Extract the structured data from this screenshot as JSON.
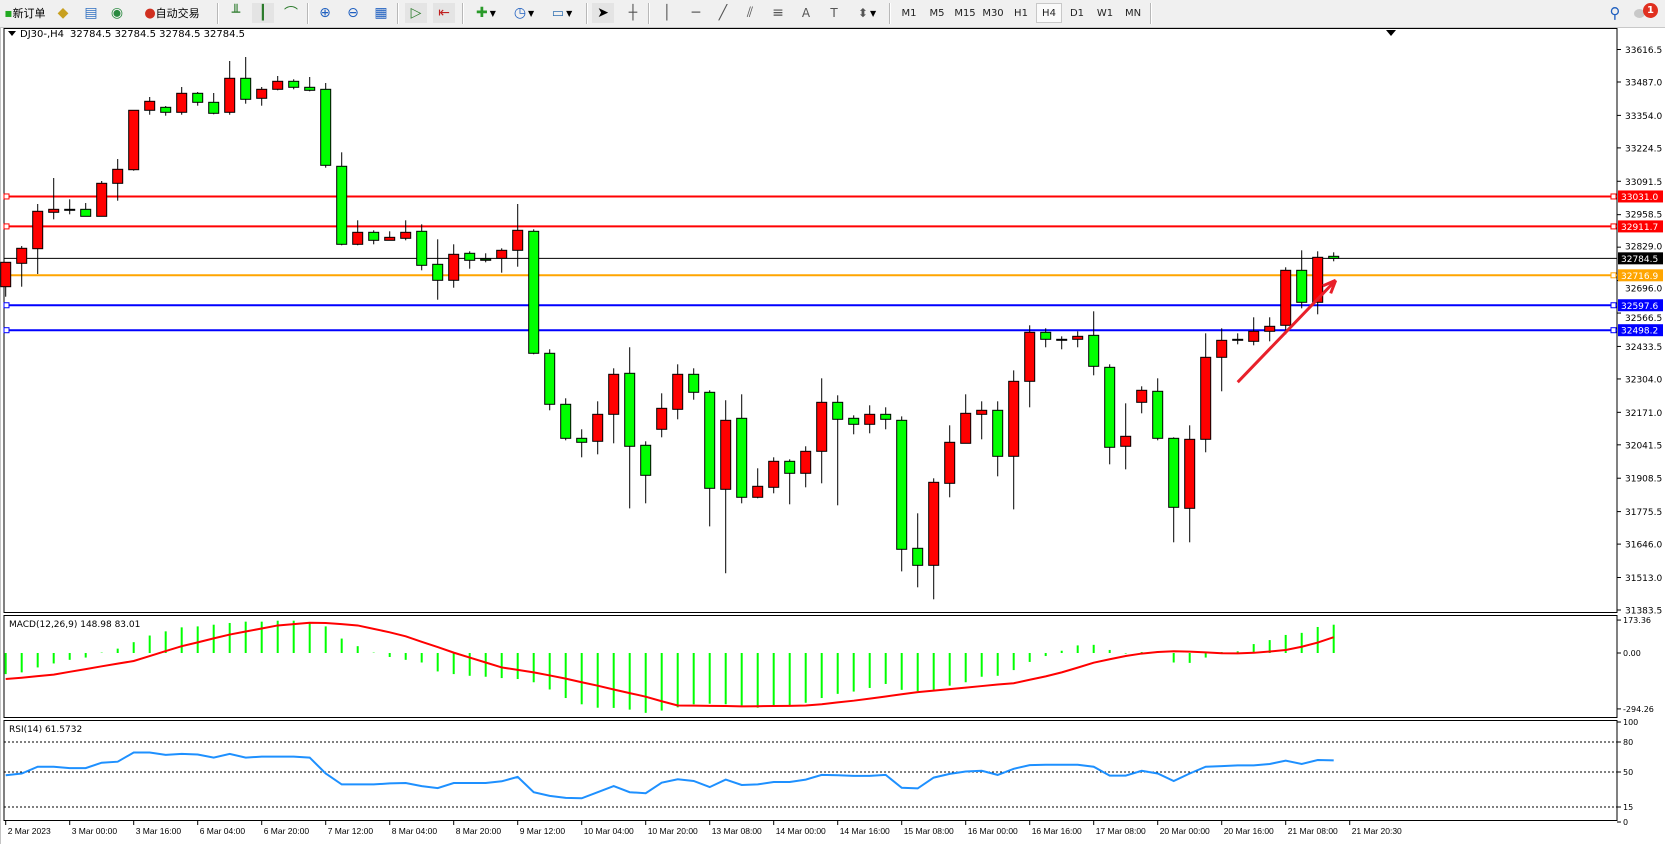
{
  "toolbar": {
    "new_order_label": "新订单",
    "auto_trading_label": "自动交易",
    "timeframes": [
      "M1",
      "M5",
      "M15",
      "M30",
      "H1",
      "H4",
      "D1",
      "W1",
      "MN"
    ],
    "active_timeframe": "H4",
    "notification_count": "1",
    "icons": [
      "new-order-icon",
      "gold-icon",
      "data-window-icon",
      "signal-icon",
      "auto-trading-icon",
      "bar-chart-icon",
      "candlestick-icon",
      "line-chart-icon",
      "zoom-in-icon",
      "zoom-out-icon",
      "tile-windows-icon",
      "auto-scroll-icon",
      "chart-shift-icon",
      "indicators-icon",
      "periods-icon",
      "templates-icon",
      "cursor-icon",
      "crosshair-icon",
      "vertical-line-icon",
      "horizontal-line-icon",
      "trendline-icon",
      "equidistant-channel-icon",
      "fibonacci-icon",
      "text-icon",
      "text-label-icon",
      "arrows-icon",
      "search-icon",
      "notification-icon"
    ]
  },
  "chart_header": {
    "symbol": "DJ30-,H4",
    "ohlc": "32784.5 32784.5 32784.5 32784.5"
  },
  "colors": {
    "bull_candle": "#ff0000",
    "bear_candle": "#00ff00",
    "macd_histogram": "#00ff00",
    "macd_signal": "#ff0000",
    "rsi_line": "#1e90ff",
    "arrow": "#e8202a"
  },
  "chart_data": [
    {
      "type": "candlestick",
      "symbol": "DJ30-",
      "timeframe": "H4",
      "ylim": [
        31383.5,
        33616.5
      ],
      "y_ticks": [
        "33616.5",
        "33487.0",
        "33354.0",
        "33224.5",
        "33091.5",
        "32958.5",
        "32829.0",
        "32696.0",
        "32566.5",
        "32433.5",
        "32304.0",
        "32171.0",
        "32041.5",
        "31908.5",
        "31775.5",
        "31646.0",
        "31513.0",
        "31383.5"
      ],
      "x_tick_labels": [
        "2 Mar 2023",
        "3 Mar 00:00",
        "3 Mar 16:00",
        "6 Mar 04:00",
        "6 Mar 20:00",
        "7 Mar 12:00",
        "8 Mar 04:00",
        "8 Mar 20:00",
        "9 Mar 12:00",
        "10 Mar 04:00",
        "10 Mar 20:00",
        "13 Mar 08:00",
        "14 Mar 00:00",
        "14 Mar 16:00",
        "15 Mar 08:00",
        "16 Mar 00:00",
        "16 Mar 16:00",
        "17 Mar 08:00",
        "20 Mar 00:00",
        "20 Mar 16:00",
        "21 Mar 08:00",
        "21 Mar 20:30"
      ],
      "ohlc": [
        [
          32671.5,
          32768.7,
          32631.6,
          32768.7
        ],
        [
          32764.7,
          32833.6,
          32671.5,
          32824.5
        ],
        [
          32822.9,
          33001.0,
          32722.1,
          32971.9
        ],
        [
          32967.9,
          33104.5,
          32940.0,
          32979.8
        ],
        [
          32979.8,
          33019.7,
          32959.9,
          32979.8
        ],
        [
          32979.8,
          33004.9,
          32951.9,
          32951.9
        ],
        [
          32951.9,
          33092.6,
          32951.9,
          33083.4
        ],
        [
          33083.4,
          33180.2,
          33014.1,
          33139.2
        ],
        [
          33137.6,
          33374.3,
          33133.6,
          33374.3
        ],
        [
          33374.3,
          33427.3,
          33356.7,
          33410.1
        ],
        [
          33386.2,
          33391.4,
          33352.8,
          33366.3
        ],
        [
          33366.3,
          33467.1,
          33356.7,
          33442.0
        ],
        [
          33442.0,
          33447.2,
          33392.6,
          33406.1
        ],
        [
          33406.1,
          33443.2,
          33358.3,
          33362.3
        ],
        [
          33366.3,
          33570.7,
          33356.7,
          33501.8
        ],
        [
          33501.8,
          33586.6,
          33400.6,
          33418.1
        ],
        [
          33422.1,
          33467.1,
          33392.6,
          33457.9
        ],
        [
          33457.9,
          33510.9,
          33453.9,
          33489.8
        ],
        [
          33489.8,
          33497.8,
          33457.9,
          33465.9
        ],
        [
          33465.9,
          33506.9,
          33449.9,
          33453.9
        ],
        [
          33457.9,
          33483.0,
          33145.6,
          33155.1
        ],
        [
          33151.2,
          33206.9,
          32836.4,
          32840.4
        ],
        [
          32840.4,
          32936.0,
          32836.4,
          32888.2
        ],
        [
          32888.2,
          32896.2,
          32840.4,
          32856.3
        ],
        [
          32856.3,
          32892.2,
          32856.3,
          32868.2
        ],
        [
          32864.3,
          32936.0,
          32856.3,
          32888.2
        ],
        [
          32892.2,
          32920.1,
          32736.8,
          32756.7
        ],
        [
          32760.7,
          32860.3,
          32619.7,
          32697.0
        ],
        [
          32697.0,
          32840.4,
          32667.5,
          32800.6
        ],
        [
          32804.6,
          32812.5,
          32743.2,
          32776.7
        ],
        [
          32781.8,
          32804.6,
          32768.7,
          32776.7
        ],
        [
          32784.6,
          32824.5,
          32727.3,
          32816.5
        ],
        [
          32816.5,
          33001.0,
          32751.2,
          32896.2
        ],
        [
          32892.2,
          32900.2,
          32402.2,
          32406.2
        ],
        [
          32406.2,
          32422.1,
          32179.1,
          32203.0
        ],
        [
          32203.0,
          32226.9,
          32059.5,
          32067.5
        ],
        [
          32067.5,
          32103.4,
          31991.8,
          32051.6
        ],
        [
          32055.6,
          32214.9,
          32003.7,
          32163.1
        ],
        [
          32163.1,
          32346.4,
          32047.6,
          32322.5
        ],
        [
          32326.5,
          32430.1,
          31788.6,
          32035.7
        ],
        [
          32039.7,
          32055.6,
          31808.5,
          31920.1
        ],
        [
          32103.4,
          32246.8,
          32071.5,
          32187.0
        ],
        [
          32183.0,
          32362.3,
          32143.2,
          32322.5
        ],
        [
          32322.5,
          32346.4,
          32221.3,
          32250.8
        ],
        [
          32250.8,
          32258.8,
          31716.9,
          31868.3
        ],
        [
          31864.3,
          32218.9,
          31529.7,
          32139.2
        ],
        [
          32147.2,
          32242.8,
          31808.5,
          31832.5
        ],
        [
          31832.5,
          31948.0,
          31828.5,
          31876.3
        ],
        [
          31872.3,
          31991.8,
          31848.4,
          31975.9
        ],
        [
          31975.9,
          31983.8,
          31804.6,
          31928.1
        ],
        [
          31928.1,
          32035.7,
          31872.3,
          32015.7
        ],
        [
          32015.7,
          32306.5,
          31888.2,
          32210.9
        ],
        [
          32210.9,
          32238.8,
          31800.6,
          32143.2
        ],
        [
          32147.2,
          32159.1,
          32083.5,
          32123.3
        ],
        [
          32123.3,
          32199.0,
          32087.5,
          32163.1
        ],
        [
          32163.1,
          32191.0,
          32103.4,
          32143.2
        ],
        [
          32139.2,
          32155.1,
          31537.6,
          31625.3
        ],
        [
          31629.3,
          31768.7,
          31473.9,
          31561.5
        ],
        [
          31561.5,
          31908.1,
          31426.1,
          31892.2
        ],
        [
          31888.2,
          32119.3,
          31832.5,
          32051.6
        ],
        [
          32047.6,
          32242.8,
          32047.6,
          32167.1
        ],
        [
          32163.1,
          32214.9,
          32063.5,
          32179.1
        ],
        [
          32179.1,
          32214.9,
          31916.1,
          31995.8
        ],
        [
          31995.8,
          32338.4,
          31784.6,
          32294.6
        ],
        [
          32294.6,
          32517.7,
          32191.0,
          32489.8
        ],
        [
          32489.8,
          32505.8,
          32430.1,
          32461.9
        ],
        [
          32461.9,
          32473.8,
          32422.1,
          32457.9
        ],
        [
          32461.9,
          32493.8,
          32430.1,
          32473.8
        ],
        [
          32477.8,
          32573.5,
          32318.5,
          32354.3
        ],
        [
          32350.3,
          32362.3,
          31963.9,
          32031.7
        ],
        [
          32035.7,
          32206.9,
          31943.9,
          32075.5
        ],
        [
          32210.9,
          32274.7,
          32167.1,
          32258.8
        ],
        [
          32254.8,
          32306.5,
          32059.5,
          32067.5
        ],
        [
          32067.5,
          32071.5,
          31653.2,
          31792.6
        ],
        [
          31788.6,
          32119.3,
          31653.2,
          32063.5
        ],
        [
          32063.5,
          32485.8,
          32011.8,
          32390.2
        ],
        [
          32390.2,
          32505.8,
          32254.8,
          32457.9
        ],
        [
          32461.9,
          32485.8,
          32442.0,
          32457.9
        ],
        [
          32453.9,
          32549.6,
          32438.0,
          32493.8
        ],
        [
          32493.8,
          32549.6,
          32453.9,
          32513.7
        ],
        [
          32517.7,
          32748.8,
          32481.8,
          32736.8
        ],
        [
          32736.8,
          32816.5,
          32585.4,
          32609.3
        ],
        [
          32609.3,
          32812.5,
          32561.5,
          32788.6
        ],
        [
          32792.6,
          32808.5,
          32772.7,
          32784.5
        ]
      ],
      "horizontal_lines": [
        {
          "price": "33031.0",
          "color": "#ff0000"
        },
        {
          "price": "32911.7",
          "color": "#ff0000"
        },
        {
          "price": "32784.5",
          "color": "#000000"
        },
        {
          "price": "32716.9",
          "color": "#ffa500"
        },
        {
          "price": "32597.6",
          "color": "#0000ff"
        },
        {
          "price": "32498.2",
          "color": "#0000ff"
        }
      ],
      "annotation": {
        "type": "arrow",
        "color": "#e8202a",
        "from": {
          "bar": 77,
          "price": 32291
        },
        "to": {
          "bar": 82,
          "price": 32697
        }
      }
    },
    {
      "type": "bar+line",
      "label": "MACD(12,26,9) 148.98 83.01",
      "y_ticks": [
        "173.36",
        "0.00",
        "-294.26"
      ],
      "histogram": [
        -111,
        -102,
        -76,
        -55,
        -36,
        -24,
        2,
        23,
        57,
        92,
        114,
        135,
        140,
        149,
        158,
        165,
        165,
        170,
        170,
        161,
        140,
        76,
        36,
        2,
        -21,
        -36,
        -50,
        -97,
        -111,
        -120,
        -125,
        -132,
        -137,
        -154,
        -192,
        -237,
        -270,
        -288,
        -289,
        -298,
        -315,
        -303,
        -286,
        -270,
        -267,
        -270,
        -276,
        -288,
        -279,
        -276,
        -262,
        -237,
        -215,
        -203,
        -184,
        -163,
        -194,
        -201,
        -194,
        -172,
        -154,
        -125,
        -120,
        -90,
        -47,
        -16,
        12,
        40,
        43,
        16,
        -3,
        5,
        10,
        -50,
        -52,
        -24,
        5,
        9,
        47,
        68,
        95,
        106,
        137,
        148.98
      ],
      "signal": [
        -137,
        -130,
        -122,
        -114,
        -99,
        -85,
        -70,
        -56,
        -42,
        -16,
        10,
        36,
        56,
        77,
        97,
        113,
        129,
        145,
        152,
        159,
        158,
        152,
        145,
        127,
        109,
        88,
        59,
        31,
        2,
        -24,
        -50,
        -76,
        -89,
        -102,
        -118,
        -135,
        -154,
        -172,
        -192,
        -211,
        -230,
        -254,
        -276,
        -277,
        -278,
        -279,
        -281,
        -280,
        -279,
        -278,
        -276,
        -270,
        -260,
        -251,
        -240,
        -229,
        -217,
        -206,
        -198,
        -190,
        -182,
        -174,
        -166,
        -159,
        -141,
        -123,
        -102,
        -77,
        -51,
        -33,
        -16,
        -3,
        5,
        9,
        7,
        3,
        -1,
        -2,
        1,
        8,
        16,
        33,
        55,
        83.01
      ]
    },
    {
      "type": "line",
      "label": "RSI(14) 61.5732",
      "ylim": [
        0,
        100
      ],
      "y_ticks": [
        "100",
        "80",
        "50",
        "15",
        "0"
      ],
      "levels": [
        80,
        50,
        15
      ],
      "values": [
        46.8,
        48.5,
        55.3,
        55.3,
        53.9,
        53.9,
        59.3,
        60.3,
        69.5,
        69.5,
        67.1,
        68.1,
        67.5,
        64.4,
        68.1,
        64.4,
        65.4,
        65.4,
        65.4,
        64.4,
        48.5,
        37.6,
        37.6,
        37.6,
        38.6,
        39.0,
        35.9,
        33.9,
        39.0,
        39.0,
        39.0,
        40.7,
        45.1,
        29.8,
        26.1,
        24.1,
        23.7,
        29.8,
        35.9,
        29.8,
        28.8,
        39.3,
        42.7,
        41.0,
        34.9,
        42.4,
        37.0,
        37.6,
        40.0,
        40.0,
        42.4,
        47.1,
        46.8,
        46.1,
        46.1,
        47.1,
        34.2,
        33.6,
        44.4,
        48.1,
        50.5,
        51.2,
        47.1,
        53.2,
        56.9,
        57.3,
        57.3,
        57.3,
        55.3,
        46.4,
        46.4,
        51.2,
        48.5,
        41.0,
        48.5,
        55.3,
        55.9,
        56.6,
        56.6,
        58.0,
        61.4,
        58.0,
        62.0,
        61.5732
      ]
    }
  ]
}
